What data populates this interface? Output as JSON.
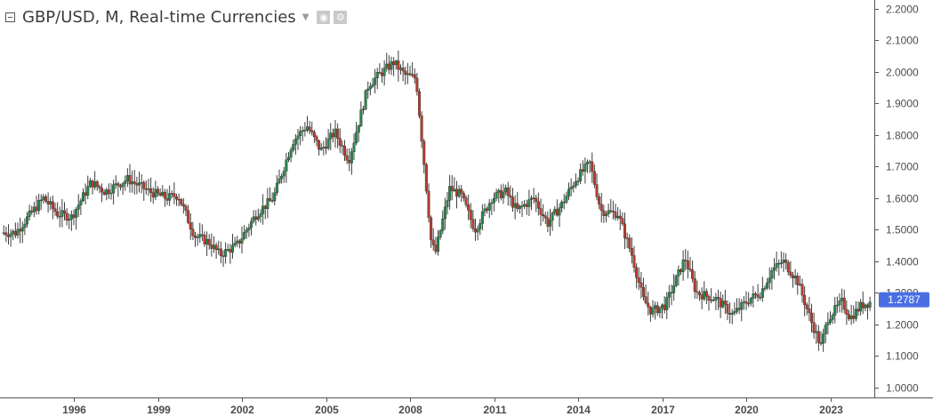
{
  "header": {
    "title": "GBP/USD, M, Real-time Currencies",
    "icons": [
      "collapse-icon",
      "caret-down-icon",
      "eye-icon",
      "gear-icon"
    ]
  },
  "colors": {
    "up": "#26884a",
    "down": "#b83b2d",
    "wick": "#3e3e3e",
    "price_tag": "#4a6fe3",
    "axis_text": "#4c4c4c"
  },
  "chart_data": {
    "type": "candlestick",
    "title": "GBP/USD, M, Real-time Currencies",
    "interval": "M",
    "ylim": [
      0.97,
      2.23
    ],
    "y_ticks": [
      "1.0000",
      "1.1000",
      "1.2000",
      "1.3000",
      "1.4000",
      "1.5000",
      "1.6000",
      "1.7000",
      "1.8000",
      "1.9000",
      "2.0000",
      "2.1000",
      "2.2000"
    ],
    "x_ticks": [
      "1996",
      "1999",
      "2002",
      "2005",
      "2008",
      "2011",
      "2014",
      "2017",
      "2020",
      "2023"
    ],
    "last_price": "1.2787",
    "close_series": {
      "x": [
        1994.0,
        1995.0,
        1995.5,
        1996.0,
        1996.7,
        1997.2,
        1998.0,
        1998.8,
        1999.4,
        1999.8,
        2000.4,
        2000.9,
        2001.3,
        2001.9,
        2002.6,
        2003.2,
        2003.9,
        2004.4,
        2004.9,
        2005.4,
        2005.9,
        2006.6,
        2007.1,
        2007.5,
        2007.9,
        2008.3,
        2008.7,
        2008.85,
        2009.0,
        2009.5,
        2009.9,
        2010.4,
        2011.0,
        2011.5,
        2011.9,
        2012.5,
        2013.0,
        2013.5,
        2014.0,
        2014.5,
        2014.9,
        2015.5,
        2016.0,
        2016.4,
        2016.7,
        2017.2,
        2017.9,
        2018.3,
        2019.0,
        2019.6,
        2020.2,
        2020.6,
        2021.0,
        2021.4,
        2021.9,
        2022.4,
        2022.75,
        2023.0,
        2023.5,
        2023.8,
        2024.2,
        2024.5
      ],
      "close": [
        1.49,
        1.6,
        1.55,
        1.54,
        1.65,
        1.62,
        1.66,
        1.62,
        1.6,
        1.61,
        1.48,
        1.46,
        1.42,
        1.45,
        1.55,
        1.6,
        1.78,
        1.83,
        1.75,
        1.81,
        1.72,
        1.96,
        2.0,
        2.03,
        1.99,
        1.98,
        1.6,
        1.45,
        1.43,
        1.63,
        1.61,
        1.5,
        1.6,
        1.62,
        1.56,
        1.6,
        1.52,
        1.58,
        1.66,
        1.71,
        1.56,
        1.55,
        1.42,
        1.28,
        1.24,
        1.26,
        1.41,
        1.3,
        1.28,
        1.23,
        1.28,
        1.3,
        1.37,
        1.4,
        1.34,
        1.21,
        1.13,
        1.22,
        1.27,
        1.22,
        1.26,
        1.27
      ]
    }
  }
}
